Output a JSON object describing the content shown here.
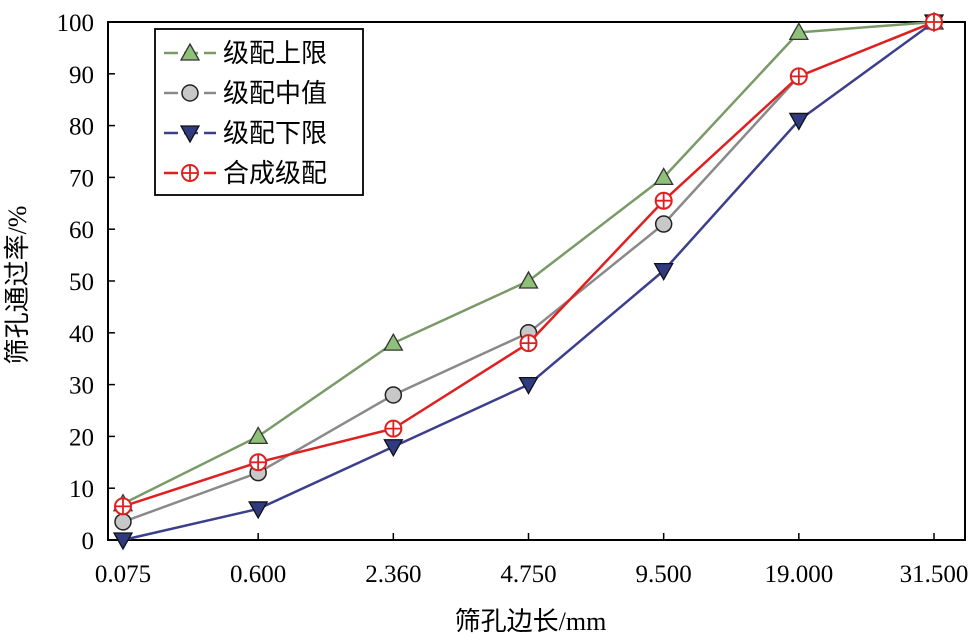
{
  "chart_data": {
    "type": "line",
    "xlabel": "筛孔边长/mm",
    "ylabel": "筛孔通过率/%",
    "categories": [
      "0.075",
      "0.600",
      "2.360",
      "4.750",
      "9.500",
      "19.000",
      "31.500"
    ],
    "yticks": [
      "0",
      "10",
      "20",
      "30",
      "40",
      "50",
      "60",
      "70",
      "80",
      "90",
      "100"
    ],
    "ylim": [
      0,
      100
    ],
    "grid": false,
    "legend_position": "top-left",
    "series": [
      {
        "name": "级配上限",
        "values": [
          7,
          20,
          38,
          50,
          70,
          98,
          100
        ],
        "color": "#7a9a68",
        "marker": "triangle-up",
        "marker_fill": "#8fc07a"
      },
      {
        "name": "级配中值",
        "values": [
          3.5,
          13,
          28,
          40,
          61,
          89.5,
          100
        ],
        "color": "#8a8a8a",
        "marker": "circle",
        "marker_fill": "#c8c8c8"
      },
      {
        "name": "级配下限",
        "values": [
          0,
          6,
          18,
          30,
          52,
          81,
          100
        ],
        "color": "#3c3f8c",
        "marker": "triangle-down",
        "marker_fill": "#2f3a80"
      },
      {
        "name": "合成级配",
        "values": [
          6.5,
          15,
          21.5,
          38,
          65.5,
          89.5,
          100
        ],
        "color": "#e02020",
        "marker": "circle-plus",
        "marker_fill": "#ffffff"
      }
    ]
  }
}
